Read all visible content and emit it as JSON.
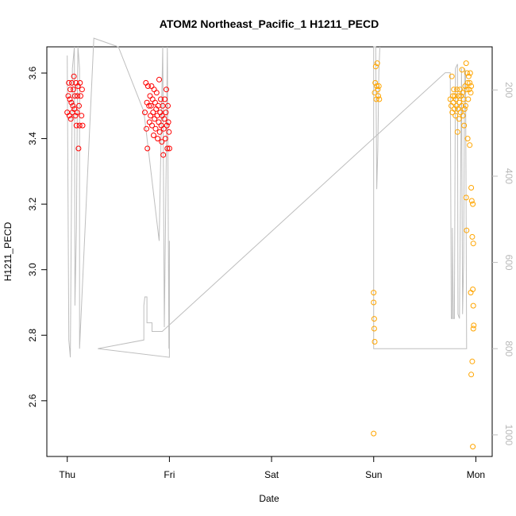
{
  "chart_data": {
    "type": "scatter",
    "title": "ATOM2 Northeast_Pacific_1 H1211_PECD",
    "xlabel": "Date",
    "ylabel": "H1211_PECD",
    "x_ticks": [
      "Thu",
      "Fri",
      "Sat",
      "Sun",
      "Mon"
    ],
    "xlim_days": [
      -0.2,
      4.16
    ],
    "ylim": [
      2.43,
      3.68
    ],
    "y_ticks": [
      "2.6",
      "2.8",
      "3.0",
      "3.2",
      "3.4",
      "3.6"
    ],
    "right_axis": {
      "label": "",
      "reversed": true,
      "lim": [
        1050,
        100
      ],
      "ticks": [
        "200",
        "400",
        "600",
        "800",
        "1000"
      ],
      "color": "#bebebe"
    },
    "grid": false,
    "legend": "none",
    "series": [
      {
        "color": "#ff0000",
        "marker": "open-circle",
        "points": [
          [
            0.0,
            3.48
          ],
          [
            0.01,
            3.53
          ],
          [
            0.015,
            3.57
          ],
          [
            0.02,
            3.47
          ],
          [
            0.025,
            3.52
          ],
          [
            0.03,
            3.55
          ],
          [
            0.035,
            3.46
          ],
          [
            0.04,
            3.51
          ],
          [
            0.045,
            3.57
          ],
          [
            0.05,
            3.48
          ],
          [
            0.055,
            3.5
          ],
          [
            0.06,
            3.55
          ],
          [
            0.065,
            3.59
          ],
          [
            0.07,
            3.49
          ],
          [
            0.075,
            3.53
          ],
          [
            0.08,
            3.47
          ],
          [
            0.085,
            3.57
          ],
          [
            0.09,
            3.44
          ],
          [
            0.095,
            3.48
          ],
          [
            0.1,
            3.53
          ],
          [
            0.105,
            3.56
          ],
          [
            0.11,
            3.37
          ],
          [
            0.115,
            3.5
          ],
          [
            0.12,
            3.44
          ],
          [
            0.125,
            3.57
          ],
          [
            0.13,
            3.53
          ],
          [
            0.14,
            3.47
          ],
          [
            0.145,
            3.55
          ],
          [
            0.15,
            3.44
          ],
          [
            0.76,
            3.48
          ],
          [
            0.77,
            3.57
          ],
          [
            0.775,
            3.43
          ],
          [
            0.78,
            3.51
          ],
          [
            0.785,
            3.37
          ],
          [
            0.79,
            3.56
          ],
          [
            0.8,
            3.5
          ],
          [
            0.805,
            3.45
          ],
          [
            0.81,
            3.53
          ],
          [
            0.815,
            3.47
          ],
          [
            0.82,
            3.5
          ],
          [
            0.825,
            3.56
          ],
          [
            0.83,
            3.44
          ],
          [
            0.835,
            3.52
          ],
          [
            0.84,
            3.48
          ],
          [
            0.845,
            3.41
          ],
          [
            0.85,
            3.55
          ],
          [
            0.855,
            3.46
          ],
          [
            0.86,
            3.51
          ],
          [
            0.865,
            3.43
          ],
          [
            0.87,
            3.49
          ],
          [
            0.875,
            3.54
          ],
          [
            0.88,
            3.47
          ],
          [
            0.885,
            3.4
          ],
          [
            0.89,
            3.5
          ],
          [
            0.895,
            3.45
          ],
          [
            0.9,
            3.58
          ],
          [
            0.905,
            3.42
          ],
          [
            0.91,
            3.48
          ],
          [
            0.915,
            3.52
          ],
          [
            0.92,
            3.44
          ],
          [
            0.925,
            3.39
          ],
          [
            0.93,
            3.47
          ],
          [
            0.935,
            3.5
          ],
          [
            0.94,
            3.35
          ],
          [
            0.945,
            3.43
          ],
          [
            0.95,
            3.46
          ],
          [
            0.955,
            3.52
          ],
          [
            0.96,
            3.4
          ],
          [
            0.965,
            3.48
          ],
          [
            0.97,
            3.55
          ],
          [
            0.975,
            3.44
          ],
          [
            0.98,
            3.37
          ],
          [
            0.985,
            3.5
          ],
          [
            0.99,
            3.45
          ],
          [
            0.995,
            3.42
          ],
          [
            1.0,
            3.37
          ]
        ]
      },
      {
        "color": "#ffa500",
        "marker": "open-circle",
        "points": [
          [
            3.0,
            2.93
          ],
          [
            3.0,
            2.9
          ],
          [
            3.005,
            2.85
          ],
          [
            3.005,
            2.82
          ],
          [
            3.01,
            2.78
          ],
          [
            3.0,
            2.5
          ],
          [
            3.01,
            3.54
          ],
          [
            3.015,
            3.57
          ],
          [
            3.02,
            3.62
          ],
          [
            3.025,
            3.52
          ],
          [
            3.03,
            3.56
          ],
          [
            3.035,
            3.63
          ],
          [
            3.04,
            3.55
          ],
          [
            3.045,
            3.53
          ],
          [
            3.05,
            3.56
          ],
          [
            3.055,
            3.52
          ],
          [
            3.75,
            3.52
          ],
          [
            3.76,
            3.5
          ],
          [
            3.765,
            3.59
          ],
          [
            3.77,
            3.48
          ],
          [
            3.775,
            3.53
          ],
          [
            3.78,
            3.51
          ],
          [
            3.785,
            3.55
          ],
          [
            3.79,
            3.49
          ],
          [
            3.795,
            3.53
          ],
          [
            3.8,
            3.47
          ],
          [
            3.805,
            3.52
          ],
          [
            3.81,
            3.5
          ],
          [
            3.815,
            3.55
          ],
          [
            3.82,
            3.42
          ],
          [
            3.825,
            3.49
          ],
          [
            3.83,
            3.53
          ],
          [
            3.835,
            3.46
          ],
          [
            3.84,
            3.51
          ],
          [
            3.845,
            3.55
          ],
          [
            3.85,
            3.48
          ],
          [
            3.855,
            3.53
          ],
          [
            3.86,
            3.5
          ],
          [
            3.865,
            3.61
          ],
          [
            3.87,
            3.54
          ],
          [
            3.875,
            3.47
          ],
          [
            3.88,
            3.52
          ],
          [
            3.885,
            3.44
          ],
          [
            3.89,
            3.49
          ],
          [
            3.895,
            3.56
          ],
          [
            3.9,
            3.5
          ],
          [
            3.905,
            3.63
          ],
          [
            3.91,
            3.55
          ],
          [
            3.915,
            3.6
          ],
          [
            3.92,
            3.57
          ],
          [
            3.925,
            3.52
          ],
          [
            3.93,
            3.59
          ],
          [
            3.935,
            3.55
          ],
          [
            3.94,
            3.57
          ],
          [
            3.945,
            3.6
          ],
          [
            3.95,
            3.54
          ],
          [
            3.955,
            3.56
          ],
          [
            3.905,
            3.22
          ],
          [
            3.91,
            3.12
          ],
          [
            3.92,
            3.4
          ],
          [
            3.94,
            3.38
          ],
          [
            3.955,
            3.25
          ],
          [
            3.96,
            3.21
          ],
          [
            3.965,
            3.1
          ],
          [
            3.97,
            3.2
          ],
          [
            3.975,
            3.08
          ],
          [
            3.95,
            2.93
          ],
          [
            3.97,
            2.94
          ],
          [
            3.975,
            2.89
          ],
          [
            3.98,
            2.83
          ],
          [
            3.975,
            2.82
          ],
          [
            3.965,
            2.72
          ],
          [
            3.955,
            2.68
          ],
          [
            3.97,
            2.46
          ]
        ]
      }
    ],
    "depth_line": {
      "color": "#bebebe",
      "points": [
        [
          0.0,
          120
        ],
        [
          0.015,
          780
        ],
        [
          0.03,
          820
        ],
        [
          0.05,
          150
        ],
        [
          0.07,
          100
        ],
        [
          0.075,
          700
        ],
        [
          0.09,
          520
        ],
        [
          0.1,
          180
        ],
        [
          0.105,
          100
        ],
        [
          0.12,
          150
        ],
        [
          0.12,
          800
        ],
        [
          0.26,
          80
        ],
        [
          0.5,
          100
        ],
        [
          0.75,
          250
        ],
        [
          0.9,
          550
        ],
        [
          0.935,
          100
        ],
        [
          0.95,
          750
        ],
        [
          0.97,
          350
        ],
        [
          0.98,
          100
        ],
        [
          0.995,
          800
        ],
        [
          1.0,
          550
        ],
        [
          1.0,
          820
        ],
        [
          0.3,
          800
        ],
        [
          0.75,
          780
        ],
        [
          0.75,
          700
        ],
        [
          0.76,
          680
        ],
        [
          0.78,
          680
        ],
        [
          0.78,
          740
        ],
        [
          0.83,
          740
        ],
        [
          0.83,
          760
        ],
        [
          0.93,
          760
        ],
        [
          3.7,
          160
        ],
        [
          3.75,
          160
        ],
        [
          3.76,
          730
        ],
        [
          3.77,
          730
        ],
        [
          3.77,
          520
        ],
        [
          3.78,
          730
        ],
        [
          3.79,
          730
        ],
        [
          3.8,
          150
        ],
        [
          3.82,
          140
        ],
        [
          3.825,
          720
        ],
        [
          3.84,
          730
        ],
        [
          3.86,
          150
        ],
        [
          3.87,
          720
        ],
        [
          3.88,
          600
        ],
        [
          3.89,
          150
        ],
        [
          3.9,
          160
        ],
        [
          3.91,
          800
        ],
        [
          3.0,
          800
        ],
        [
          3.0,
          100
        ],
        [
          3.02,
          100
        ],
        [
          3.03,
          430
        ],
        [
          3.04,
          340
        ],
        [
          3.05,
          160
        ],
        [
          3.06,
          100
        ]
      ]
    }
  }
}
